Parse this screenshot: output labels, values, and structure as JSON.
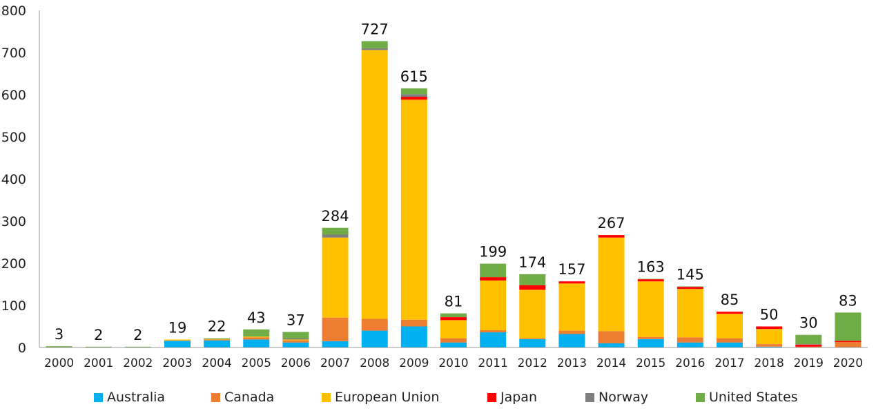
{
  "chart_data": {
    "type": "bar",
    "stacked": true,
    "title": "",
    "xlabel": "",
    "ylabel": "",
    "ylim": [
      0,
      800
    ],
    "yticks": [
      0,
      100,
      200,
      300,
      400,
      500,
      600,
      700,
      800
    ],
    "grid": false,
    "legend_position": "bottom",
    "categories": [
      "2000",
      "2001",
      "2002",
      "2003",
      "2004",
      "2005",
      "2006",
      "2007",
      "2008",
      "2009",
      "2010",
      "2011",
      "2012",
      "2013",
      "2014",
      "2015",
      "2016",
      "2017",
      "2018",
      "2019",
      "2020"
    ],
    "totals": [
      3,
      2,
      2,
      19,
      22,
      43,
      37,
      284,
      727,
      615,
      81,
      199,
      174,
      157,
      267,
      163,
      145,
      85,
      50,
      30,
      83
    ],
    "series": [
      {
        "name": "Australia",
        "color": "#00B0F0",
        "values": [
          0,
          0,
          0,
          16,
          17,
          19,
          12,
          15,
          40,
          50,
          12,
          36,
          20,
          32,
          10,
          20,
          12,
          12,
          2,
          0,
          1
        ]
      },
      {
        "name": "Canada",
        "color": "#ED7D31",
        "values": [
          0,
          0,
          0,
          1,
          2,
          5,
          5,
          56,
          28,
          16,
          10,
          5,
          2,
          8,
          29,
          5,
          12,
          10,
          6,
          2,
          12
        ]
      },
      {
        "name": "European Union",
        "color": "#FFC000",
        "values": [
          0,
          0,
          0,
          2,
          1,
          2,
          2,
          190,
          638,
          522,
          43,
          118,
          115,
          112,
          222,
          132,
          115,
          58,
          36,
          0,
          0
        ]
      },
      {
        "name": "Japan",
        "color": "#FF0000",
        "values": [
          0,
          0,
          0,
          0,
          0,
          0,
          0,
          0,
          0,
          7,
          7,
          8,
          11,
          5,
          6,
          5,
          5,
          5,
          6,
          5,
          3
        ]
      },
      {
        "name": "Norway",
        "color": "#7F7F7F",
        "values": [
          0,
          0,
          0,
          0,
          0,
          0,
          3,
          7,
          4,
          6,
          0,
          0,
          0,
          0,
          0,
          0,
          0,
          0,
          0,
          1,
          0
        ]
      },
      {
        "name": "United States",
        "color": "#70AD47",
        "values": [
          3,
          2,
          2,
          0,
          2,
          17,
          15,
          16,
          17,
          14,
          9,
          32,
          26,
          0,
          0,
          1,
          1,
          0,
          0,
          22,
          67
        ]
      }
    ]
  }
}
